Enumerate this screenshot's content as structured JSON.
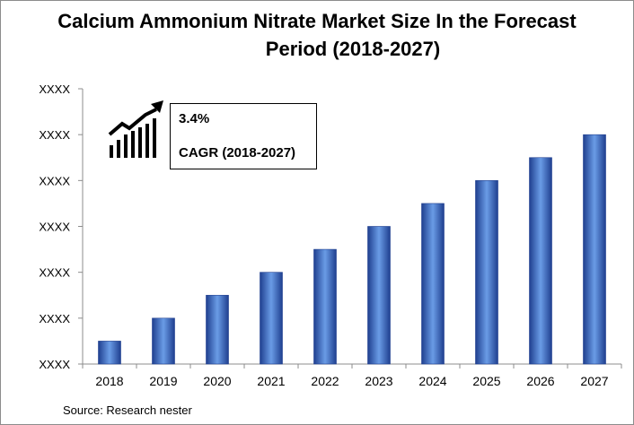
{
  "title": {
    "line1": "Calcium Ammonium Nitrate Market Size In the Forecast",
    "line2": "Period (2018-2027)"
  },
  "callout": {
    "value": "3.4%",
    "label": "CAGR (2018-2027)",
    "icon": "growth-chart-icon"
  },
  "source": "Source: Research nester",
  "colors": {
    "bar_dark": "#1f3f8f",
    "bar_mid": "#4a7fd4",
    "bar_light": "#6a9ce6",
    "axis": "#8c8c8c"
  },
  "chart_data": {
    "type": "bar",
    "title": "Calcium Ammonium Nitrate Market Size In the Forecast Period (2018-2027)",
    "categories": [
      "2018",
      "2019",
      "2020",
      "2021",
      "2022",
      "2023",
      "2024",
      "2025",
      "2026",
      "2027"
    ],
    "values": [
      0.5,
      1.0,
      1.5,
      2.0,
      2.5,
      3.0,
      3.5,
      4.0,
      4.5,
      5.0
    ],
    "ytick_labels": [
      "XXXX",
      "XXXX",
      "XXXX",
      "XXXX",
      "XXXX",
      "XXXX",
      "XXXX"
    ],
    "ylim": [
      0,
      6
    ],
    "xlabel": "",
    "ylabel": "",
    "grid": false,
    "legend": "none"
  }
}
